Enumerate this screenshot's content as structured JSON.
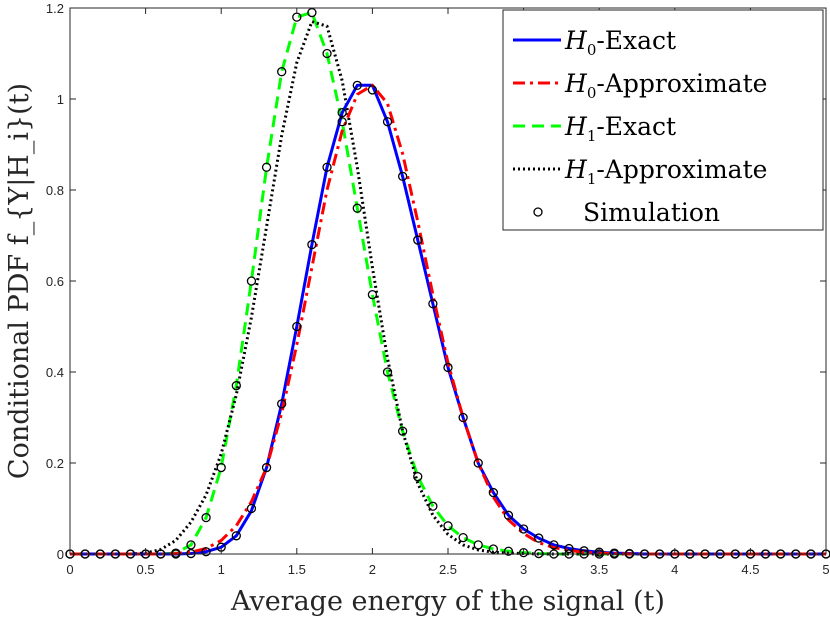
{
  "chart_data": {
    "type": "line",
    "title": "",
    "xlabel": "Average energy of the signal (t)",
    "ylabel": "Conditional PDF f_{Y|H_i}(t)",
    "xlim": [
      0,
      5
    ],
    "ylim": [
      0,
      1.2
    ],
    "grid": false,
    "legend_position": "top-right",
    "x_ticks": [
      "0",
      "0.5",
      "1",
      "1.5",
      "2",
      "2.5",
      "3",
      "3.5",
      "4",
      "4.5",
      "5"
    ],
    "y_ticks": [
      "0",
      "0.2",
      "0.4",
      "0.6",
      "0.8",
      "1",
      "1.2"
    ],
    "x_tick_values": [
      0,
      0.5,
      1,
      1.5,
      2,
      2.5,
      3,
      3.5,
      4,
      4.5,
      5
    ],
    "y_tick_values": [
      0,
      0.2,
      0.4,
      0.6,
      0.8,
      1.0,
      1.2
    ],
    "legend": [
      {
        "label": "Exact",
        "hyp": "H",
        "sub": "0"
      },
      {
        "label": "Approximate",
        "hyp": "H",
        "sub": "0"
      },
      {
        "label": "Exact",
        "hyp": "H",
        "sub": "1"
      },
      {
        "label": "Approximate",
        "hyp": "H",
        "sub": "1"
      },
      {
        "label": "Simulation",
        "hyp": "",
        "sub": ""
      }
    ],
    "series": [
      {
        "name": "H0-Exact",
        "color": "#0000ff",
        "dash": "solid",
        "x": [
          0,
          0.1,
          0.2,
          0.3,
          0.4,
          0.5,
          0.6,
          0.7,
          0.8,
          0.9,
          1.0,
          1.1,
          1.2,
          1.3,
          1.4,
          1.5,
          1.6,
          1.7,
          1.8,
          1.9,
          2.0,
          2.1,
          2.2,
          2.3,
          2.4,
          2.5,
          2.6,
          2.7,
          2.8,
          2.9,
          3.0,
          3.1,
          3.2,
          3.3,
          3.4,
          3.5,
          3.6,
          3.7,
          3.8,
          3.9,
          4.0,
          4.1,
          4.2,
          4.3,
          4.4,
          4.5,
          4.6,
          4.7,
          4.8,
          4.9,
          5.0
        ],
        "y": [
          0,
          0,
          0,
          0,
          0,
          0,
          0,
          0,
          0.001,
          0.005,
          0.015,
          0.04,
          0.095,
          0.19,
          0.33,
          0.5,
          0.68,
          0.85,
          0.97,
          1.03,
          1.03,
          0.95,
          0.83,
          0.69,
          0.55,
          0.41,
          0.3,
          0.2,
          0.135,
          0.085,
          0.055,
          0.035,
          0.02,
          0.012,
          0.007,
          0.004,
          0.002,
          0.001,
          0,
          0,
          0,
          0,
          0,
          0,
          0,
          0,
          0,
          0,
          0,
          0,
          0
        ]
      },
      {
        "name": "H0-Approximate",
        "color": "#ff0000",
        "dash": "dashdot",
        "x": [
          0,
          0.1,
          0.2,
          0.3,
          0.4,
          0.5,
          0.6,
          0.7,
          0.8,
          0.9,
          1.0,
          1.1,
          1.2,
          1.3,
          1.4,
          1.5,
          1.6,
          1.7,
          1.8,
          1.9,
          2.0,
          2.1,
          2.2,
          2.3,
          2.4,
          2.5,
          2.6,
          2.7,
          2.8,
          2.9,
          3.0,
          3.1,
          3.2,
          3.3,
          3.4,
          3.5,
          3.6,
          3.7,
          3.8,
          3.9,
          4.0,
          4.1,
          4.2,
          4.3,
          4.4,
          4.5,
          4.6,
          4.7,
          4.8,
          4.9,
          5.0
        ],
        "y": [
          0,
          0,
          0,
          0,
          0,
          0,
          0,
          0.001,
          0.004,
          0.012,
          0.03,
          0.062,
          0.115,
          0.19,
          0.31,
          0.46,
          0.63,
          0.8,
          0.93,
          1.01,
          1.03,
          0.99,
          0.88,
          0.73,
          0.57,
          0.42,
          0.3,
          0.2,
          0.125,
          0.075,
          0.045,
          0.025,
          0.014,
          0.008,
          0.004,
          0.002,
          0.001,
          0,
          0,
          0,
          0,
          0,
          0,
          0,
          0,
          0,
          0,
          0,
          0,
          0,
          0
        ]
      },
      {
        "name": "H1-Exact",
        "color": "#00ff00",
        "dash": "dashed",
        "x": [
          0,
          0.1,
          0.2,
          0.3,
          0.4,
          0.5,
          0.6,
          0.7,
          0.8,
          0.9,
          1.0,
          1.1,
          1.2,
          1.3,
          1.4,
          1.5,
          1.6,
          1.7,
          1.8,
          1.9,
          2.0,
          2.1,
          2.2,
          2.3,
          2.4,
          2.5,
          2.6,
          2.7,
          2.8,
          2.9,
          3.0,
          3.1,
          3.2,
          3.3,
          3.4,
          3.5,
          3.6,
          3.7,
          3.8,
          3.9,
          4.0,
          4.1,
          4.2,
          4.3,
          4.4,
          4.5,
          4.6,
          4.7,
          4.8,
          4.9,
          5.0
        ],
        "y": [
          0,
          0,
          0,
          0,
          0,
          0,
          0,
          0.002,
          0.02,
          0.08,
          0.19,
          0.37,
          0.6,
          0.85,
          1.06,
          1.18,
          1.19,
          1.1,
          0.95,
          0.76,
          0.57,
          0.4,
          0.27,
          0.17,
          0.105,
          0.062,
          0.036,
          0.02,
          0.011,
          0.006,
          0.003,
          0.001,
          0,
          0,
          0,
          0,
          0,
          0,
          0,
          0,
          0,
          0,
          0,
          0,
          0,
          0,
          0,
          0,
          0,
          0,
          0
        ]
      },
      {
        "name": "H1-Approximate",
        "color": "#000000",
        "dash": "dotted",
        "x": [
          0,
          0.1,
          0.2,
          0.3,
          0.4,
          0.5,
          0.6,
          0.7,
          0.8,
          0.9,
          1.0,
          1.1,
          1.2,
          1.3,
          1.4,
          1.5,
          1.6,
          1.7,
          1.8,
          1.9,
          2.0,
          2.1,
          2.2,
          2.3,
          2.4,
          2.5,
          2.6,
          2.7,
          2.8,
          2.9,
          3.0,
          3.1,
          3.2,
          3.3,
          3.4,
          3.5,
          3.6,
          3.7,
          3.8,
          3.9,
          4.0,
          4.1,
          4.2,
          4.3,
          4.4,
          4.5,
          4.6,
          4.7,
          4.8,
          4.9,
          5.0
        ],
        "y": [
          0,
          0,
          0,
          0,
          0,
          0.002,
          0.01,
          0.03,
          0.07,
          0.13,
          0.22,
          0.35,
          0.52,
          0.72,
          0.92,
          1.08,
          1.17,
          1.16,
          1.04,
          0.85,
          0.63,
          0.43,
          0.27,
          0.155,
          0.085,
          0.043,
          0.02,
          0.009,
          0.004,
          0.002,
          0.001,
          0,
          0,
          0,
          0,
          0,
          0,
          0,
          0,
          0,
          0,
          0,
          0,
          0,
          0,
          0,
          0,
          0,
          0,
          0,
          0
        ]
      },
      {
        "name": "Simulation",
        "color": "#000000",
        "marker": "circle-open",
        "x": [
          0,
          0.1,
          0.2,
          0.3,
          0.4,
          0.5,
          0.6,
          0.7,
          0.8,
          0.9,
          1.0,
          1.1,
          1.2,
          1.3,
          1.4,
          1.5,
          1.6,
          1.7,
          1.8,
          1.9,
          2.0,
          2.1,
          2.2,
          2.3,
          2.4,
          2.5,
          2.6,
          2.7,
          2.8,
          2.9,
          3.0,
          3.1,
          3.2,
          3.3,
          3.4,
          3.5,
          3.6,
          3.7,
          3.8,
          3.9,
          4.0,
          4.1,
          4.2,
          4.3,
          4.4,
          4.5,
          4.6,
          4.7,
          4.8,
          4.9,
          5.0,
          0,
          0.1,
          0.2,
          0.3,
          0.4,
          0.5,
          0.6,
          0.7,
          0.8,
          0.9,
          1.0,
          1.1,
          1.2,
          1.3,
          1.4,
          1.5,
          1.6,
          1.7,
          1.8,
          1.9,
          2.0,
          2.1,
          2.2,
          2.3,
          2.4,
          2.5,
          2.6,
          2.7,
          2.8,
          2.9,
          3.0,
          3.1,
          3.2,
          3.3,
          3.4,
          3.5,
          3.6,
          3.7,
          3.8,
          3.9,
          4.0,
          4.1,
          4.2,
          4.3,
          4.4,
          4.5,
          4.6,
          4.7,
          4.8,
          4.9,
          5.0
        ],
        "y": [
          0,
          0,
          0,
          0,
          0,
          0,
          0,
          0,
          0.001,
          0.005,
          0.015,
          0.04,
          0.1,
          0.19,
          0.33,
          0.5,
          0.68,
          0.85,
          0.97,
          1.03,
          1.02,
          0.95,
          0.83,
          0.69,
          0.55,
          0.41,
          0.3,
          0.2,
          0.135,
          0.085,
          0.055,
          0.035,
          0.02,
          0.012,
          0.007,
          0.004,
          0.002,
          0.001,
          0,
          0,
          0,
          0,
          0,
          0,
          0,
          0,
          0,
          0,
          0,
          0,
          0,
          0,
          0,
          0,
          0,
          0,
          0,
          0,
          0.002,
          0.02,
          0.08,
          0.19,
          0.37,
          0.6,
          0.85,
          1.06,
          1.18,
          1.19,
          1.1,
          0.95,
          0.76,
          0.57,
          0.4,
          0.27,
          0.17,
          0.105,
          0.062,
          0.036,
          0.02,
          0.011,
          0.006,
          0.003,
          0.001,
          0,
          0,
          0,
          0,
          0,
          0,
          0,
          0,
          0,
          0,
          0,
          0,
          0,
          0,
          0,
          0,
          0,
          0,
          0
        ]
      }
    ]
  }
}
